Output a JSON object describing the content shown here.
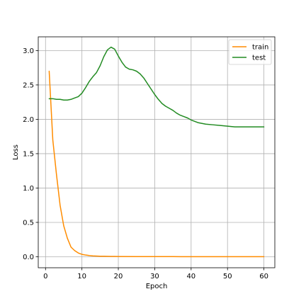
{
  "chart_data": {
    "type": "line",
    "title": "",
    "xlabel": "Epoch",
    "ylabel": "Loss",
    "xlim": [
      -2,
      63
    ],
    "ylim": [
      -0.16,
      3.2
    ],
    "xticks": [
      0,
      10,
      20,
      30,
      40,
      50,
      60
    ],
    "yticks": [
      0.0,
      0.5,
      1.0,
      1.5,
      2.0,
      2.5,
      3.0
    ],
    "xtick_labels": [
      "0",
      "10",
      "20",
      "30",
      "40",
      "50",
      "60"
    ],
    "ytick_labels": [
      "0.0",
      "0.5",
      "1.0",
      "1.5",
      "2.0",
      "2.5",
      "3.0"
    ],
    "grid": true,
    "legend_position": "top-right",
    "series": [
      {
        "name": "train",
        "color": "#ff8c00",
        "x": [
          1,
          2,
          3,
          4,
          5,
          6,
          7,
          8,
          9,
          10,
          11,
          12,
          13,
          14,
          15,
          16,
          17,
          18,
          19,
          20,
          25,
          30,
          35,
          40,
          45,
          50,
          55,
          60
        ],
        "y": [
          2.7,
          1.7,
          1.2,
          0.75,
          0.45,
          0.27,
          0.14,
          0.09,
          0.055,
          0.035,
          0.025,
          0.018,
          0.013,
          0.01,
          0.008,
          0.007,
          0.006,
          0.005,
          0.005,
          0.004,
          0.003,
          0.002,
          0.002,
          0.001,
          0.001,
          0.001,
          0.001,
          0.001
        ]
      },
      {
        "name": "test",
        "color": "#228b22",
        "x": [
          1,
          2,
          3,
          4,
          5,
          6,
          7,
          8,
          9,
          10,
          11,
          12,
          13,
          14,
          15,
          16,
          17,
          18,
          19,
          20,
          21,
          22,
          23,
          24,
          25,
          26,
          27,
          28,
          29,
          30,
          31,
          32,
          33,
          34,
          35,
          36,
          37,
          38,
          39,
          40,
          42,
          44,
          46,
          48,
          50,
          52,
          54,
          56,
          58,
          60
        ],
        "y": [
          2.3,
          2.3,
          2.29,
          2.29,
          2.28,
          2.28,
          2.29,
          2.31,
          2.33,
          2.38,
          2.46,
          2.55,
          2.62,
          2.68,
          2.78,
          2.91,
          3.01,
          3.05,
          3.02,
          2.92,
          2.83,
          2.76,
          2.73,
          2.72,
          2.7,
          2.66,
          2.6,
          2.52,
          2.44,
          2.36,
          2.29,
          2.23,
          2.19,
          2.16,
          2.13,
          2.09,
          2.06,
          2.04,
          2.02,
          1.99,
          1.95,
          1.93,
          1.92,
          1.91,
          1.9,
          1.89,
          1.89,
          1.89,
          1.89,
          1.89
        ]
      }
    ]
  }
}
